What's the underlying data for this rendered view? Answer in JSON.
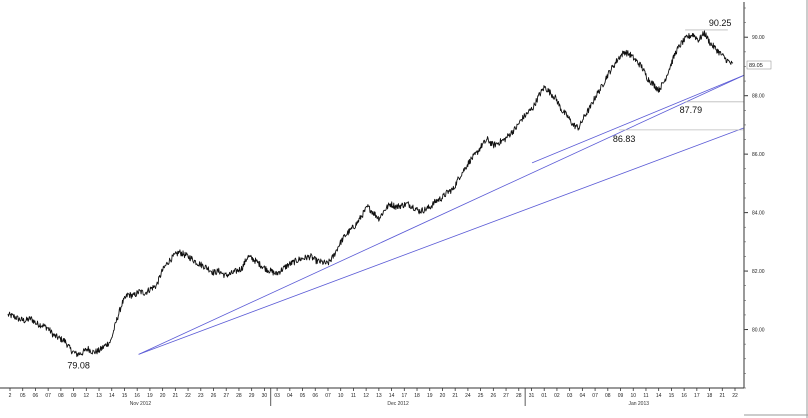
{
  "chart_data": {
    "type": "line",
    "title": "",
    "xlabel": "",
    "ylabel": "",
    "ylim": [
      78.0,
      91.0
    ],
    "y_ticks": [
      "80.00",
      "82.00",
      "84.00",
      "86.00",
      "88.00",
      "90.00"
    ],
    "y_tick_values": [
      80,
      82,
      84,
      86,
      88,
      90
    ],
    "grid": false,
    "legend": "none",
    "last_price_label": "89.05",
    "date_ticks": [
      "2",
      "05",
      "06",
      "07",
      "08",
      "09",
      "12",
      "13",
      "14",
      "15",
      "16",
      "19",
      "20",
      "21",
      "22",
      "23",
      "26",
      "27",
      "28",
      "29",
      "30",
      "03",
      "04",
      "05",
      "06",
      "07",
      "10",
      "11",
      "12",
      "13",
      "14",
      "17",
      "18",
      "19",
      "20",
      "21",
      "24",
      "25",
      "26",
      "27",
      "28",
      "31",
      "01",
      "02",
      "03",
      "04",
      "07",
      "08",
      "09",
      "10",
      "11",
      "14",
      "15",
      "16",
      "17",
      "18",
      "21",
      "22"
    ],
    "months": [
      "Nov 2012",
      "Dec 2012",
      "Jan 2013"
    ],
    "series": [
      {
        "values": [
          80.5,
          80.45,
          80.35,
          80.3,
          80.38,
          80.2,
          80.15,
          80.05,
          79.8,
          79.7,
          79.6,
          79.3,
          79.15,
          79.2,
          79.35,
          79.22,
          79.28,
          79.45,
          79.6,
          80.3,
          80.9,
          81.2,
          81.15,
          81.3,
          81.25,
          81.4,
          81.5,
          82.0,
          82.3,
          82.5,
          82.65,
          82.55,
          82.45,
          82.3,
          82.2,
          82.1,
          81.95,
          82.0,
          81.85,
          81.9,
          82.0,
          82.1,
          82.5,
          82.4,
          82.25,
          82.1,
          82.0,
          81.9,
          82.05,
          82.2,
          82.3,
          82.4,
          82.45,
          82.5,
          82.35,
          82.3,
          82.25,
          82.5,
          82.9,
          83.2,
          83.4,
          83.6,
          83.9,
          84.2,
          84.0,
          83.8,
          84.1,
          84.3,
          84.2,
          84.25,
          84.3,
          84.2,
          84.05,
          84.1,
          84.2,
          84.4,
          84.5,
          84.7,
          84.8,
          85.2,
          85.5,
          85.8,
          86.0,
          86.3,
          86.5,
          86.3,
          86.4,
          86.5,
          86.7,
          86.9,
          87.2,
          87.4,
          87.6,
          88.0,
          88.3,
          88.1,
          87.9,
          87.5,
          87.3,
          87.0,
          86.9,
          87.3,
          87.6,
          88.0,
          88.3,
          88.7,
          89.0,
          89.3,
          89.5,
          89.4,
          89.2,
          89.0,
          88.6,
          88.4,
          88.2,
          88.5,
          89.0,
          89.5,
          89.8,
          90.0,
          90.1,
          89.9,
          90.15,
          89.8,
          89.6,
          89.4,
          89.2,
          89.05
        ]
      }
    ],
    "trendlines": [
      {
        "from": [
          0.1775,
          79.15
        ],
        "to": [
          1.0,
          88.7
        ]
      },
      {
        "from": [
          0.1775,
          79.15
        ],
        "to": [
          1.0,
          86.9
        ]
      },
      {
        "from": [
          0.712,
          85.7
        ],
        "to": [
          1.0,
          88.7
        ]
      }
    ],
    "reference_lines": [
      {
        "label": "90.25",
        "value": 90.25,
        "from": 0.92,
        "to": 0.978
      },
      {
        "label": "87.79",
        "value": 87.79,
        "from": 0.92,
        "to": 1.0
      },
      {
        "label": "86.83",
        "value": 86.83,
        "from": 0.83,
        "to": 1.0
      }
    ],
    "annotations": [
      {
        "text": "79.08",
        "x": 0.0915,
        "y": 79.08
      },
      {
        "text": "86.83",
        "x": 0.83,
        "y": 86.83
      },
      {
        "text": "87.79",
        "x": 0.918,
        "y": 87.79
      },
      {
        "text": "90.25",
        "x": 0.955,
        "y": 90.25
      }
    ]
  }
}
